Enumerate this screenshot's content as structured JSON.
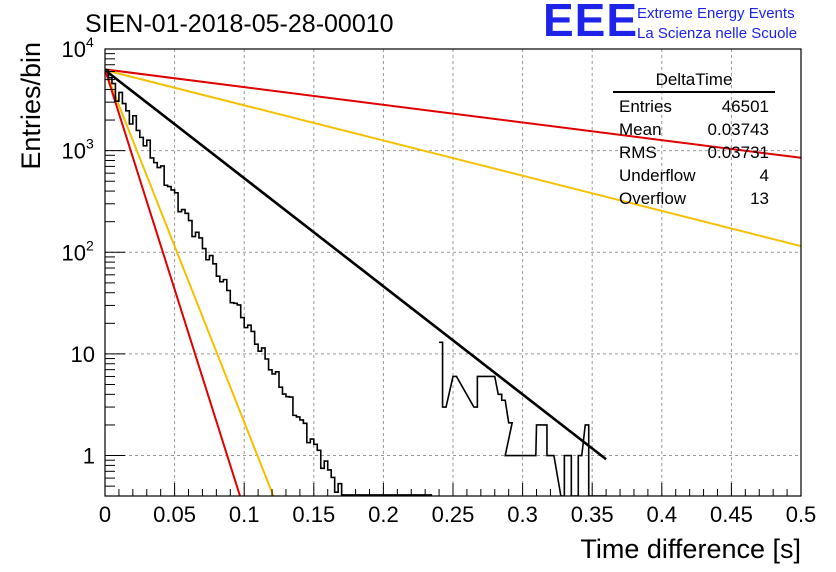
{
  "header": {
    "run_id": "SIEN-01-2018-05-28-00010",
    "logo_mark": "EEE",
    "logo_line1": "Extreme Energy Events",
    "logo_line2": "La Scienza nelle Scuole"
  },
  "stats_box": {
    "title": "DeltaTime",
    "rows": [
      {
        "label": "Entries",
        "value": "46501"
      },
      {
        "label": "Mean",
        "value": "0.03743"
      },
      {
        "label": "RMS",
        "value": "0.03731"
      },
      {
        "label": "Underflow",
        "value": "4"
      },
      {
        "label": "Overflow",
        "value": "13"
      }
    ]
  },
  "colors": {
    "histogram": "#000000",
    "fit": "#000000",
    "outer_bound": "#e00000",
    "inner_bound": "#f5c000",
    "grid": "#999999"
  },
  "chart_data": {
    "type": "line",
    "title": "SIEN-01-2018-05-28-00010",
    "xlabel": "Time difference [s]",
    "ylabel": "Entries/bin",
    "xlim": [
      0,
      0.5
    ],
    "ylim": [
      0.4,
      10000
    ],
    "yscale": "log",
    "grid": true,
    "x_ticks": [
      "0",
      "0.05",
      "0.1",
      "0.15",
      "0.2",
      "0.25",
      "0.3",
      "0.35",
      "0.4",
      "0.45",
      "0.5"
    ],
    "x_tick_values": [
      0,
      0.05,
      0.1,
      0.15,
      0.2,
      0.25,
      0.3,
      0.35,
      0.4,
      0.45,
      0.5
    ],
    "y_tick_values": [
      1,
      10,
      100,
      1000,
      10000
    ],
    "y_tick_labels": [
      {
        "base": "1",
        "exp": ""
      },
      {
        "base": "10",
        "exp": ""
      },
      {
        "base": "10",
        "exp": "2"
      },
      {
        "base": "10",
        "exp": "3"
      },
      {
        "base": "10",
        "exp": "4"
      }
    ],
    "histogram": {
      "name": "DeltaTime",
      "bin_width": 0.0025,
      "x_min": 0,
      "x_max": 0.36,
      "fit_y0": 6200,
      "fit_slope": -24.5,
      "outliers": [
        {
          "x": 0.24,
          "value": 13,
          "width": 0.0025
        },
        {
          "x": 0.2425,
          "value": 3,
          "width": 0.0025
        },
        {
          "x": 0.25,
          "value": 6,
          "width": 0.0025
        },
        {
          "x": 0.265,
          "value": 3,
          "width": 0.0025
        },
        {
          "x": 0.2675,
          "value": 6,
          "width": 0.0025
        },
        {
          "x": 0.2775,
          "value": 6,
          "width": 0.0025
        },
        {
          "x": 0.2825,
          "value": 4,
          "width": 0.0025
        },
        {
          "x": 0.285,
          "value": 3.5,
          "width": 0.0025
        },
        {
          "x": 0.29,
          "value": 2.1,
          "width": 0.0025
        },
        {
          "x": 0.2875,
          "value": 1,
          "width": 0.022
        },
        {
          "x": 0.31,
          "value": 2,
          "width": 0.0075
        },
        {
          "x": 0.3175,
          "value": 1,
          "width": 0.005
        },
        {
          "x": 0.3275,
          "value": 0.4,
          "width": 0.0025
        },
        {
          "x": 0.33,
          "value": 1,
          "width": 0.005
        },
        {
          "x": 0.335,
          "value": 0.4,
          "width": 0.005
        },
        {
          "x": 0.34,
          "value": 1,
          "width": 0.0025
        },
        {
          "x": 0.345,
          "value": 2,
          "width": 0.0025
        },
        {
          "x": 0.3475,
          "value": 0.4,
          "width": 0.0125
        }
      ]
    },
    "series": [
      {
        "name": "fit",
        "color": "#000000",
        "x": [
          0,
          0.36
        ],
        "y": [
          6200,
          0.92
        ]
      },
      {
        "name": "red-slow",
        "color": "#e00000",
        "x": [
          0,
          0.5
        ],
        "y": [
          6300,
          850
        ]
      },
      {
        "name": "yellow-slow",
        "color": "#f5c000",
        "x": [
          0,
          0.5
        ],
        "y": [
          6200,
          115
        ]
      },
      {
        "name": "yellow-fast",
        "color": "#f5c000",
        "x": [
          0,
          0.121
        ],
        "y": [
          6200,
          0.4
        ]
      },
      {
        "name": "red-fast",
        "color": "#e00000",
        "x": [
          0,
          0.097
        ],
        "y": [
          6300,
          0.4
        ]
      }
    ]
  }
}
